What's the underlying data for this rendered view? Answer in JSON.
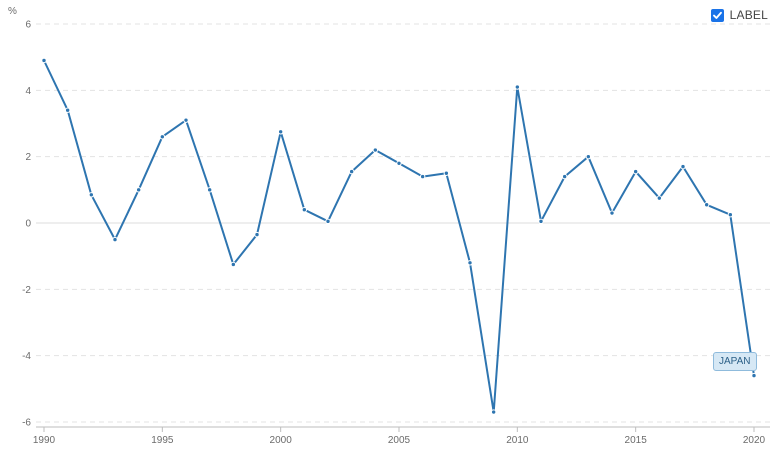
{
  "legend": {
    "label": "LABEL",
    "checked": true
  },
  "colors": {
    "line": "#2e75b0",
    "checkbox": "#1a73e8"
  },
  "chart_data": {
    "type": "line",
    "title": "",
    "xlabel": "",
    "ylabel": "%",
    "x": [
      1990,
      1991,
      1992,
      1993,
      1994,
      1995,
      1996,
      1997,
      1998,
      1999,
      2000,
      2001,
      2002,
      2003,
      2004,
      2005,
      2006,
      2007,
      2008,
      2009,
      2010,
      2011,
      2012,
      2013,
      2014,
      2015,
      2016,
      2017,
      2018,
      2019,
      2020
    ],
    "series": [
      {
        "name": "JAPAN",
        "values": [
          4.9,
          3.4,
          0.85,
          -0.5,
          1.0,
          2.6,
          3.1,
          1.0,
          -1.25,
          -0.35,
          2.75,
          0.4,
          0.05,
          1.55,
          2.2,
          1.8,
          1.4,
          1.5,
          -1.2,
          -5.7,
          4.1,
          0.05,
          1.4,
          2.0,
          0.3,
          1.55,
          0.75,
          1.7,
          0.55,
          0.25,
          -4.6
        ]
      }
    ],
    "xticks": [
      "1990",
      "1995",
      "2000",
      "2005",
      "2010",
      "2015",
      "2020"
    ],
    "yticks": [
      "6",
      "4",
      "2",
      "0",
      "-2",
      "-4",
      "-6"
    ],
    "xlim": [
      1990,
      2020
    ],
    "ylim": [
      -6,
      6
    ],
    "grid": true,
    "legend_position": "top-right"
  }
}
